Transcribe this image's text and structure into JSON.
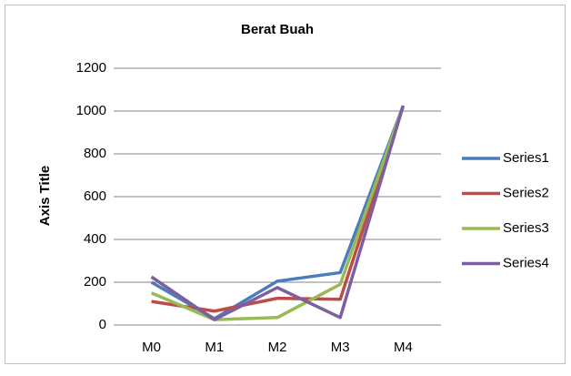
{
  "chart_data": {
    "type": "line",
    "title": "Berat Buah",
    "y_label": "Axis Title",
    "categories": [
      "M0",
      "M1",
      "M2",
      "M3",
      "M4"
    ],
    "series": [
      {
        "name": "Series1",
        "color": "#4a7ebb",
        "values": [
          200,
          30,
          205,
          245,
          1025
        ]
      },
      {
        "name": "Series2",
        "color": "#be4b48",
        "values": [
          110,
          65,
          125,
          120,
          1025
        ]
      },
      {
        "name": "Series3",
        "color": "#98b954",
        "values": [
          150,
          25,
          35,
          190,
          1025
        ]
      },
      {
        "name": "Series4",
        "color": "#7d5fa0",
        "values": [
          225,
          25,
          175,
          35,
          1025
        ]
      }
    ],
    "ylim": [
      0,
      1200
    ],
    "yticks": [
      0,
      200,
      400,
      600,
      800,
      1000,
      1200
    ],
    "grid": true,
    "legend": "right"
  }
}
